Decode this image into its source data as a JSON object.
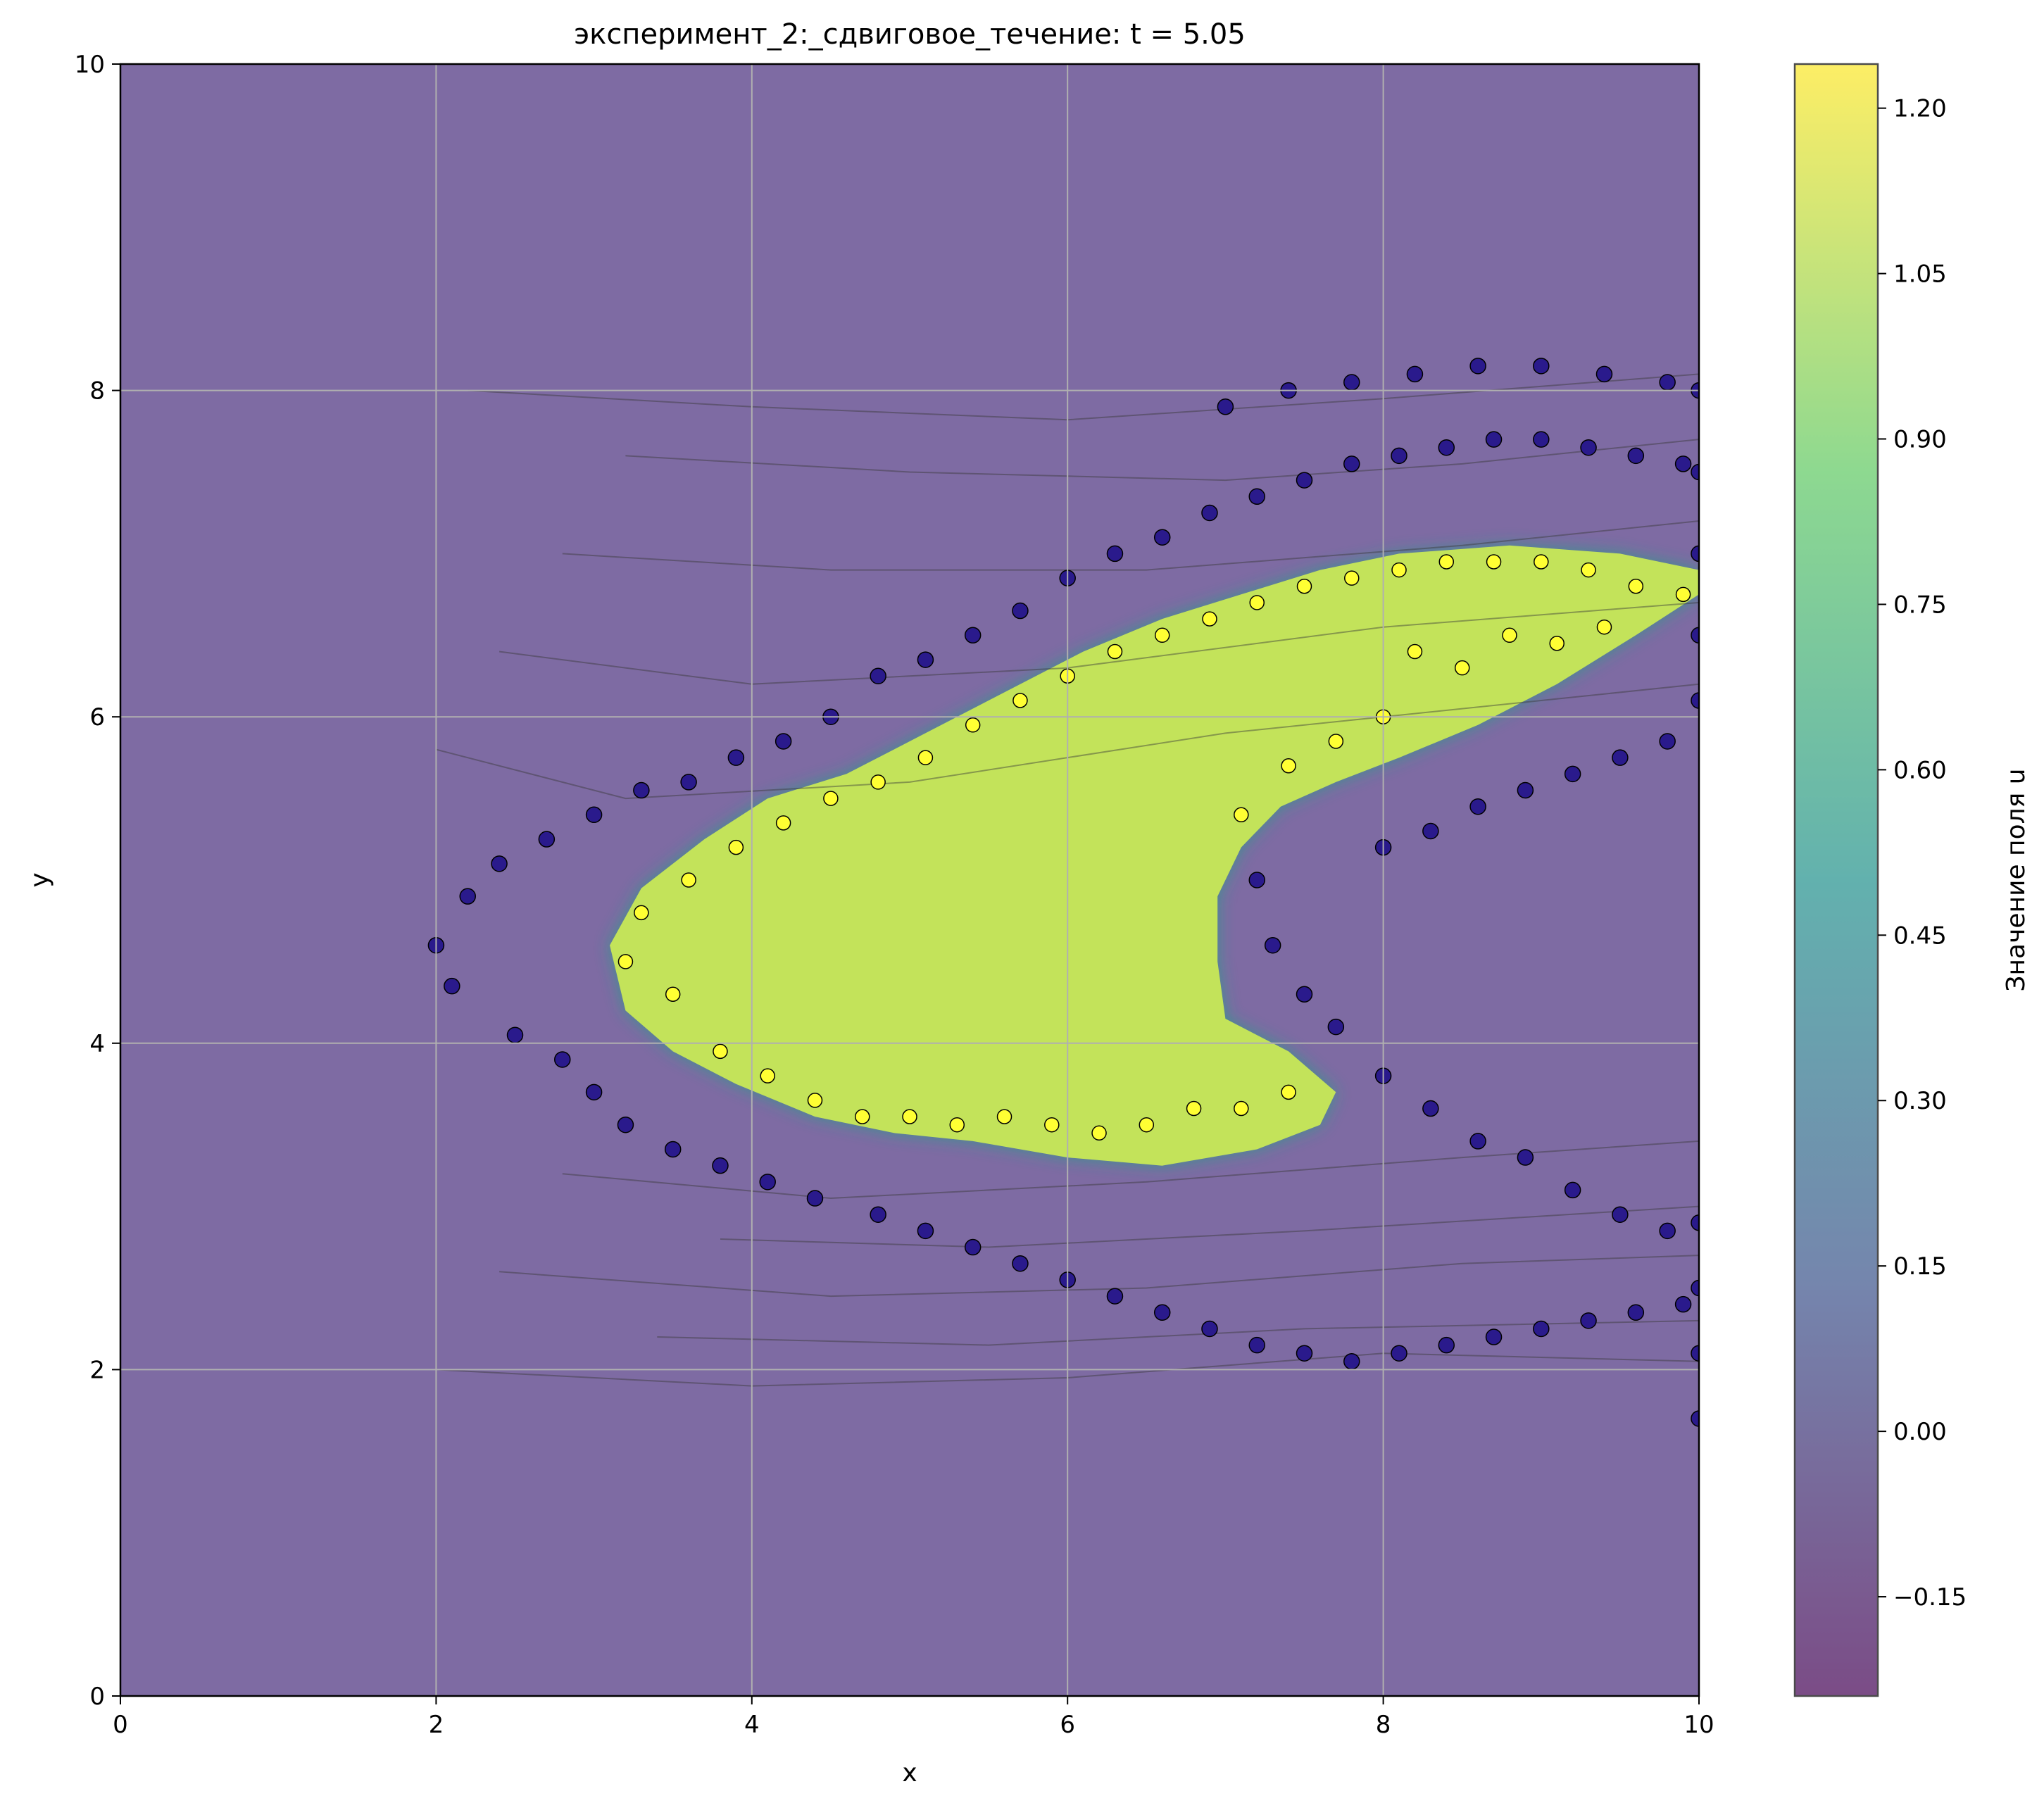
{
  "chart_data": {
    "type": "scatter",
    "title": "эксперимент_2:_сдвиговое_течение: t = 5.05",
    "xlabel": "x",
    "ylabel": "y",
    "xlim": [
      0,
      10
    ],
    "ylim": [
      0,
      10
    ],
    "xticks": [
      "0",
      "2",
      "4",
      "6",
      "8",
      "10"
    ],
    "yticks": [
      "0",
      "2",
      "4",
      "6",
      "8",
      "10"
    ],
    "grid": true,
    "background_field_value": 0.0,
    "colorbar": {
      "label": "Значение поля u",
      "range": [
        -0.24,
        1.24
      ],
      "ticks": [
        "1.20",
        "1.05",
        "0.90",
        "0.75",
        "0.60",
        "0.45",
        "0.30",
        "0.15",
        "0.00",
        "−0.15"
      ],
      "colormap": "viridis",
      "stops": [
        "#440154",
        "#3b528b",
        "#21918c",
        "#5ec962",
        "#fde725"
      ],
      "alpha": 0.7
    },
    "markers": {
      "inside_color": "#ffff33",
      "outside_color": "#2a1a8c",
      "edge_color": "#000000"
    },
    "region_boundary": {
      "upper": [
        [
          3.1,
          4.6
        ],
        [
          3.3,
          4.95
        ],
        [
          3.7,
          5.25
        ],
        [
          4.1,
          5.5
        ],
        [
          4.6,
          5.65
        ],
        [
          5.1,
          5.9
        ],
        [
          5.6,
          6.15
        ],
        [
          6.1,
          6.4
        ],
        [
          6.6,
          6.6
        ],
        [
          7.1,
          6.75
        ],
        [
          7.6,
          6.9
        ],
        [
          8.1,
          7.0
        ],
        [
          8.8,
          7.05
        ],
        [
          9.5,
          7.0
        ],
        [
          10.0,
          6.9
        ]
      ],
      "lower_right": [
        [
          10.0,
          6.75
        ],
        [
          9.6,
          6.5
        ],
        [
          9.1,
          6.2
        ],
        [
          8.6,
          5.95
        ],
        [
          8.1,
          5.75
        ],
        [
          7.7,
          5.6
        ],
        [
          7.35,
          5.45
        ],
        [
          7.1,
          5.2
        ],
        [
          6.95,
          4.9
        ],
        [
          6.95,
          4.5
        ],
        [
          7.0,
          4.15
        ],
        [
          7.4,
          3.95
        ],
        [
          7.7,
          3.7
        ],
        [
          7.6,
          3.5
        ],
        [
          7.2,
          3.35
        ],
        [
          6.6,
          3.25
        ],
        [
          6.0,
          3.3
        ],
        [
          5.4,
          3.4
        ],
        [
          4.9,
          3.45
        ],
        [
          4.4,
          3.55
        ],
        [
          3.9,
          3.75
        ],
        [
          3.5,
          3.95
        ],
        [
          3.2,
          4.2
        ],
        [
          3.1,
          4.6
        ]
      ]
    },
    "series": [
      {
        "values_inside": [
          [
            3.2,
            4.5
          ],
          [
            3.5,
            4.3
          ],
          [
            3.8,
            3.95
          ],
          [
            4.1,
            3.8
          ],
          [
            4.4,
            3.65
          ],
          [
            4.7,
            3.55
          ],
          [
            5.0,
            3.55
          ],
          [
            5.3,
            3.5
          ],
          [
            5.6,
            3.55
          ],
          [
            5.9,
            3.5
          ],
          [
            6.2,
            3.45
          ],
          [
            6.5,
            3.5
          ],
          [
            6.8,
            3.6
          ],
          [
            7.1,
            3.6
          ],
          [
            7.4,
            3.7
          ],
          [
            3.3,
            4.8
          ],
          [
            3.6,
            5.0
          ],
          [
            3.9,
            5.2
          ],
          [
            4.2,
            5.35
          ],
          [
            4.5,
            5.5
          ],
          [
            4.8,
            5.6
          ],
          [
            5.1,
            5.75
          ],
          [
            5.4,
            5.95
          ],
          [
            5.7,
            6.1
          ],
          [
            6.0,
            6.25
          ],
          [
            6.3,
            6.4
          ],
          [
            6.6,
            6.5
          ],
          [
            6.9,
            6.6
          ],
          [
            7.2,
            6.7
          ],
          [
            7.5,
            6.8
          ],
          [
            7.8,
            6.85
          ],
          [
            8.1,
            6.9
          ],
          [
            8.4,
            6.95
          ],
          [
            8.7,
            6.95
          ],
          [
            9.0,
            6.95
          ],
          [
            9.3,
            6.9
          ],
          [
            9.6,
            6.8
          ],
          [
            9.9,
            6.75
          ],
          [
            8.2,
            6.4
          ],
          [
            8.5,
            6.3
          ],
          [
            8.8,
            6.5
          ],
          [
            9.1,
            6.45
          ],
          [
            9.4,
            6.55
          ],
          [
            8.0,
            6.0
          ],
          [
            7.7,
            5.85
          ],
          [
            7.4,
            5.7
          ],
          [
            7.1,
            5.4
          ]
        ],
        "values_outside": [
          [
            2.0,
            4.6
          ],
          [
            2.1,
            4.35
          ],
          [
            2.2,
            4.9
          ],
          [
            2.4,
            5.1
          ],
          [
            2.5,
            4.05
          ],
          [
            2.7,
            5.25
          ],
          [
            2.8,
            3.9
          ],
          [
            3.0,
            5.4
          ],
          [
            3.0,
            3.7
          ],
          [
            3.3,
            5.55
          ],
          [
            3.2,
            3.5
          ],
          [
            3.6,
            5.6
          ],
          [
            3.5,
            3.35
          ],
          [
            3.9,
            5.75
          ],
          [
            3.8,
            3.25
          ],
          [
            4.2,
            5.85
          ],
          [
            4.1,
            3.15
          ],
          [
            4.5,
            6.0
          ],
          [
            4.4,
            3.05
          ],
          [
            4.8,
            6.25
          ],
          [
            4.8,
            2.95
          ],
          [
            5.1,
            6.35
          ],
          [
            5.1,
            2.85
          ],
          [
            5.4,
            6.5
          ],
          [
            5.4,
            2.75
          ],
          [
            5.7,
            6.65
          ],
          [
            5.7,
            2.65
          ],
          [
            6.0,
            6.85
          ],
          [
            6.0,
            2.55
          ],
          [
            6.3,
            7.0
          ],
          [
            6.3,
            2.45
          ],
          [
            6.6,
            7.1
          ],
          [
            6.6,
            2.35
          ],
          [
            6.9,
            7.25
          ],
          [
            6.9,
            2.25
          ],
          [
            7.2,
            7.35
          ],
          [
            7.2,
            2.15
          ],
          [
            7.5,
            7.45
          ],
          [
            7.5,
            2.1
          ],
          [
            7.8,
            7.55
          ],
          [
            7.8,
            2.05
          ],
          [
            8.1,
            7.6
          ],
          [
            8.1,
            2.1
          ],
          [
            8.4,
            7.65
          ],
          [
            8.4,
            2.15
          ],
          [
            8.7,
            7.7
          ],
          [
            8.7,
            2.2
          ],
          [
            9.0,
            7.7
          ],
          [
            9.0,
            2.25
          ],
          [
            9.3,
            7.65
          ],
          [
            9.3,
            2.3
          ],
          [
            9.6,
            7.6
          ],
          [
            9.6,
            2.35
          ],
          [
            9.9,
            7.55
          ],
          [
            9.9,
            2.4
          ],
          [
            7.0,
            7.9
          ],
          [
            7.4,
            8.0
          ],
          [
            7.8,
            8.05
          ],
          [
            8.2,
            8.1
          ],
          [
            8.6,
            8.15
          ],
          [
            9.0,
            8.15
          ],
          [
            9.4,
            8.1
          ],
          [
            9.8,
            8.05
          ],
          [
            7.2,
            5.0
          ],
          [
            7.3,
            4.6
          ],
          [
            7.5,
            4.3
          ],
          [
            7.7,
            4.1
          ],
          [
            8.0,
            3.8
          ],
          [
            8.3,
            3.6
          ],
          [
            8.6,
            3.4
          ],
          [
            8.9,
            3.3
          ],
          [
            9.2,
            3.1
          ],
          [
            9.5,
            2.95
          ],
          [
            9.8,
            2.85
          ],
          [
            8.0,
            5.2
          ],
          [
            8.3,
            5.3
          ],
          [
            8.6,
            5.45
          ],
          [
            8.9,
            5.55
          ],
          [
            9.2,
            5.65
          ],
          [
            9.5,
            5.75
          ],
          [
            9.8,
            5.85
          ],
          [
            10.0,
            6.1
          ],
          [
            10.0,
            6.5
          ],
          [
            10.0,
            7.0
          ],
          [
            10.0,
            7.5
          ],
          [
            10.0,
            8.0
          ],
          [
            10.0,
            1.7
          ],
          [
            10.0,
            2.1
          ],
          [
            10.0,
            2.5
          ],
          [
            10.0,
            2.9
          ]
        ]
      }
    ],
    "streamlines": [
      [
        [
          2.2,
          8.0
        ],
        [
          4.0,
          7.9
        ],
        [
          6.0,
          7.82
        ],
        [
          8.0,
          7.95
        ],
        [
          10.0,
          8.1
        ]
      ],
      [
        [
          3.2,
          7.6
        ],
        [
          5.0,
          7.5
        ],
        [
          7.0,
          7.45
        ],
        [
          8.5,
          7.55
        ],
        [
          10.0,
          7.7
        ]
      ],
      [
        [
          2.8,
          7.0
        ],
        [
          4.5,
          6.9
        ],
        [
          6.5,
          6.9
        ],
        [
          8.5,
          7.05
        ],
        [
          10.0,
          7.2
        ]
      ],
      [
        [
          2.4,
          6.4
        ],
        [
          4.0,
          6.2
        ],
        [
          6.0,
          6.3
        ],
        [
          8.0,
          6.55
        ],
        [
          10.0,
          6.7
        ]
      ],
      [
        [
          2.0,
          5.8
        ],
        [
          3.2,
          5.5
        ],
        [
          5.0,
          5.6
        ],
        [
          7.0,
          5.9
        ],
        [
          9.0,
          6.1
        ],
        [
          10.0,
          6.2
        ]
      ],
      [
        [
          2.0,
          2.0
        ],
        [
          4.0,
          1.9
        ],
        [
          6.0,
          1.95
        ],
        [
          8.0,
          2.1
        ],
        [
          10.0,
          2.05
        ]
      ],
      [
        [
          3.4,
          2.2
        ],
        [
          5.5,
          2.15
        ],
        [
          7.5,
          2.25
        ],
        [
          10.0,
          2.3
        ]
      ],
      [
        [
          2.4,
          2.6
        ],
        [
          4.5,
          2.45
        ],
        [
          6.5,
          2.5
        ],
        [
          8.5,
          2.65
        ],
        [
          10.0,
          2.7
        ]
      ],
      [
        [
          3.8,
          2.8
        ],
        [
          5.5,
          2.75
        ],
        [
          7.5,
          2.85
        ],
        [
          10.0,
          3.0
        ]
      ],
      [
        [
          2.8,
          3.2
        ],
        [
          4.5,
          3.05
        ],
        [
          6.5,
          3.15
        ],
        [
          8.5,
          3.3
        ],
        [
          10.0,
          3.4
        ]
      ]
    ]
  }
}
